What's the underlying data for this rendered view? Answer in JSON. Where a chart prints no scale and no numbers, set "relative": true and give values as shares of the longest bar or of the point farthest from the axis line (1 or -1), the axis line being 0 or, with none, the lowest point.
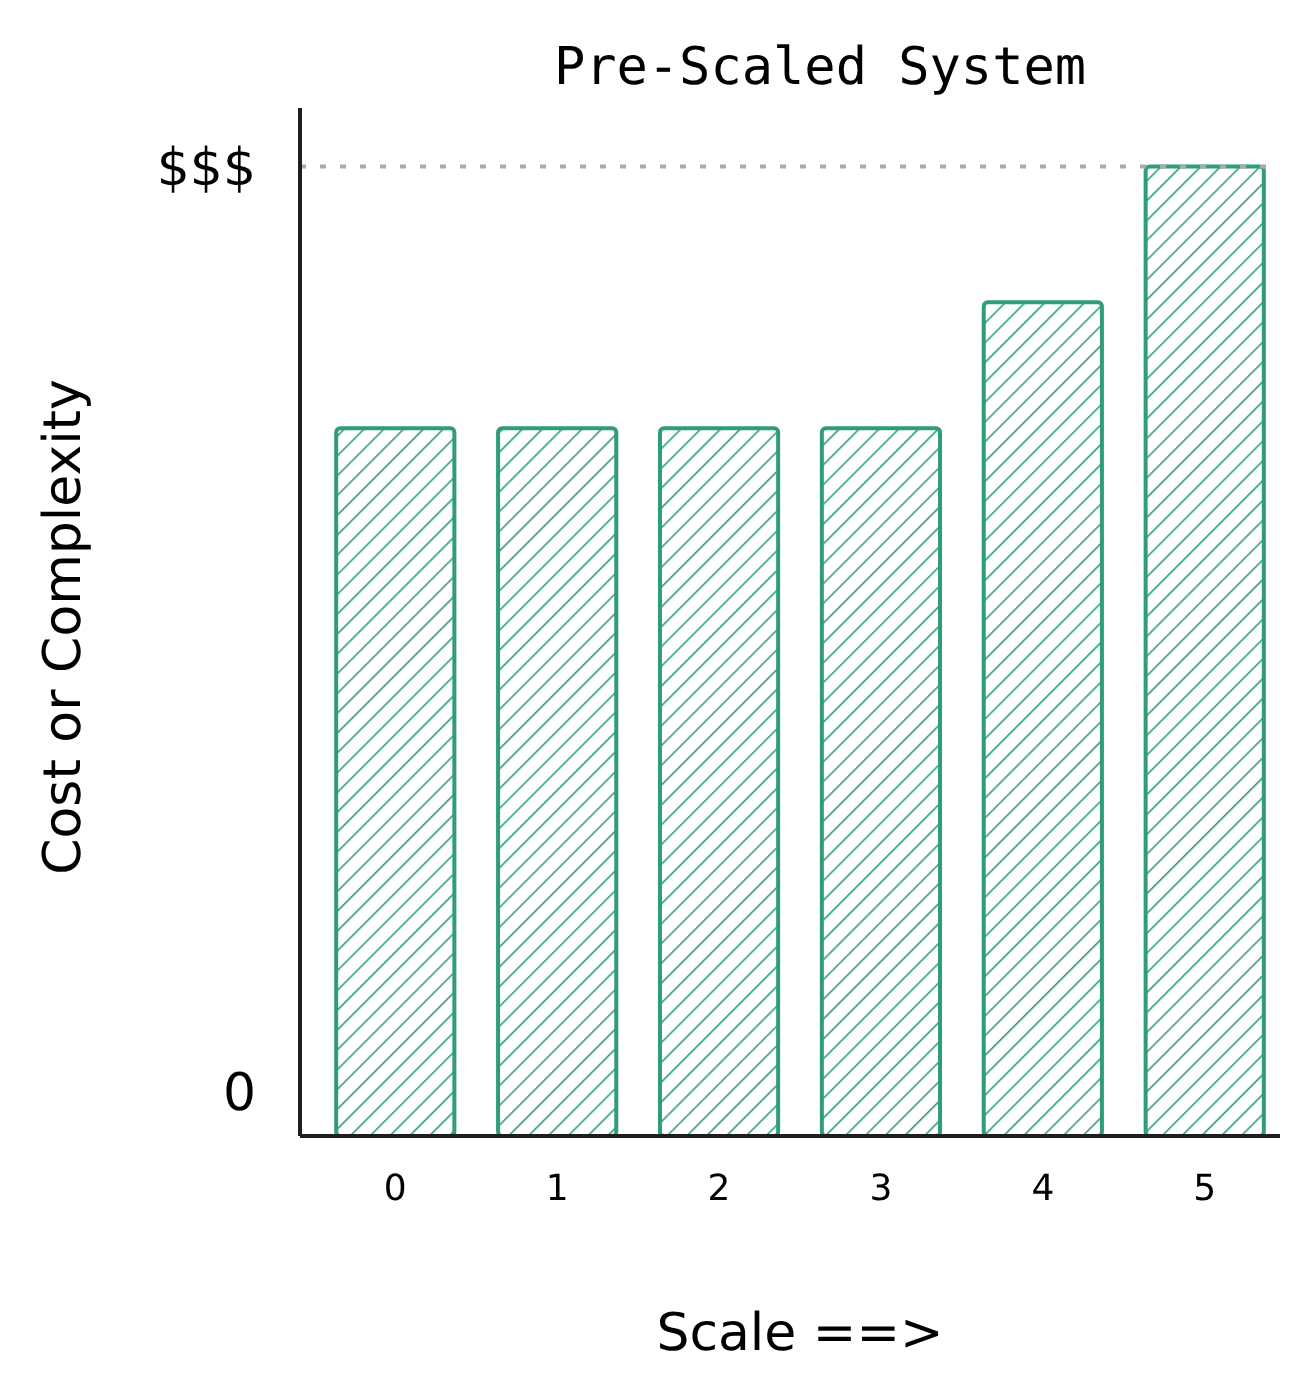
{
  "chart_data": {
    "type": "bar",
    "title": "Pre-Scaled System",
    "xlabel": "Scale ==>",
    "ylabel": "Cost or Complexity",
    "categories": [
      "0",
      "1",
      "2",
      "3",
      "4",
      "5"
    ],
    "values": [
      0.73,
      0.73,
      0.73,
      0.73,
      0.86,
      1
    ],
    "color": "#2f9e77",
    "relative": true,
    "annotations": [
      "0"
    ],
    "ref_lines": [
      {
        "axis": "y",
        "value": 1,
        "label": "$$$",
        "color": "#aaaaaa",
        "line_style": "dotted"
      }
    ]
  }
}
